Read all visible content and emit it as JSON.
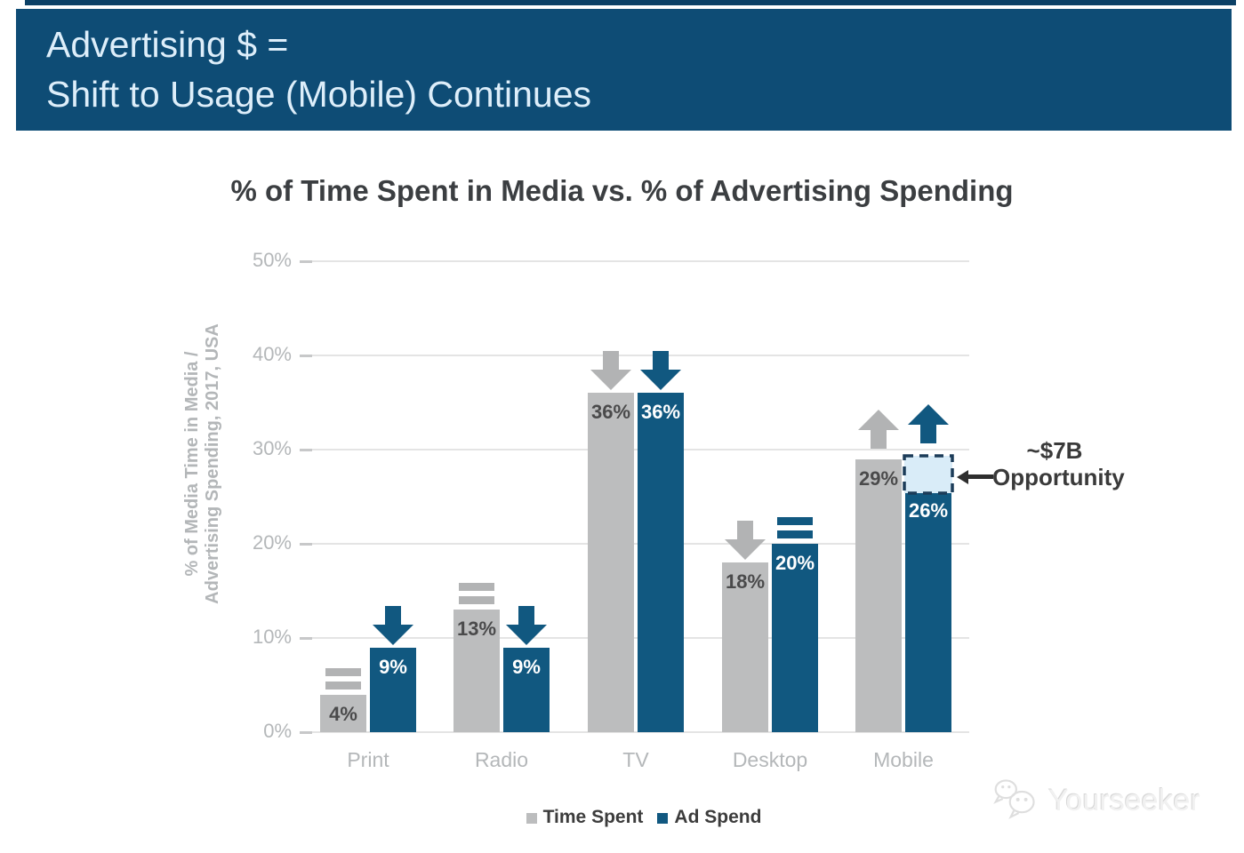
{
  "banner": {
    "line1": "Advertising $ =",
    "line2": "Shift to Usage (Mobile) Continues"
  },
  "chart_data": {
    "type": "bar",
    "title": "% of Time Spent in Media vs. % of Advertising Spending",
    "ylabel_line1": "% of Media Time in Media /",
    "ylabel_line2": "Advertising Spending, 2017, USA",
    "categories": [
      "Print",
      "Radio",
      "TV",
      "Desktop",
      "Mobile"
    ],
    "series": [
      {
        "name": "Time Spent",
        "color": "#bcbdbe",
        "trend_color": "#b2b3b4",
        "label_color": "#4a4a4b",
        "values": [
          4,
          13,
          36,
          18,
          29
        ],
        "trends": [
          "equal",
          "equal",
          "down",
          "down",
          "up"
        ]
      },
      {
        "name": "Ad Spend",
        "color": "#115880",
        "trend_color": "#115880",
        "label_color": "#ffffff",
        "values": [
          9,
          9,
          36,
          20,
          26
        ],
        "trends": [
          "down",
          "down",
          "down",
          "equal",
          "up"
        ]
      }
    ],
    "ylim": [
      0,
      50
    ],
    "yticks": [
      "0%",
      "10%",
      "20%",
      "30%",
      "40%",
      "50%"
    ],
    "grid": true,
    "legend_position": "bottom",
    "annotation": {
      "line1": "~$7B",
      "line2": "Opportunity",
      "category": "Mobile",
      "series": "Ad Spend"
    }
  },
  "watermark": {
    "text": "Yourseeker"
  },
  "colors": {
    "top_strip": "#0c4166",
    "banner_bg": "#0e4c75",
    "banner_text": "#ddeefa",
    "title_text": "#3b3e41",
    "axis_text": "#b4b7b9",
    "grid": "#e4e4e4",
    "tick": "#c7c8c9",
    "box_fill": "#d9ecf8",
    "box_border": "#1c3c59",
    "annotation_text": "#3a3a3a",
    "annotation_arrow": "#2e2e2e"
  }
}
